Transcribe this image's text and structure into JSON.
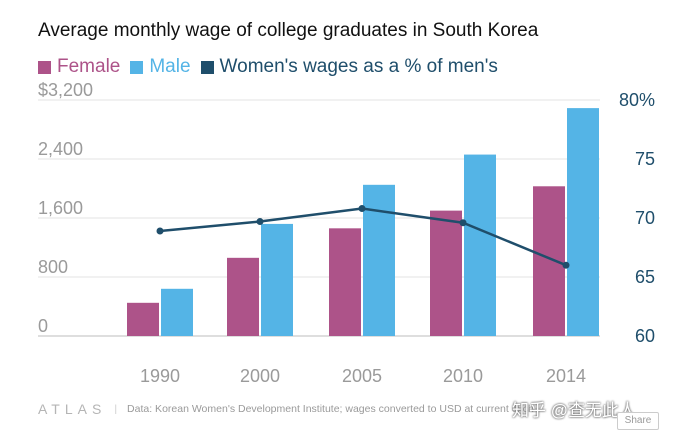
{
  "chart_data": {
    "type": "bar",
    "title": "Average monthly wage of college graduates in South Korea",
    "categories": [
      "1990",
      "2000",
      "2005",
      "2010",
      "2014"
    ],
    "series": [
      {
        "name": "Female",
        "type": "bar",
        "axis": "left",
        "color": "#ad5389",
        "values": [
          450,
          1060,
          1460,
          1700,
          2030
        ]
      },
      {
        "name": "Male",
        "type": "bar",
        "axis": "left",
        "color": "#54b4e6",
        "values": [
          640,
          1520,
          2050,
          2460,
          3090
        ]
      },
      {
        "name": "Women's wages as a % of men's",
        "type": "line",
        "axis": "right",
        "color": "#1f4e6b",
        "values": [
          68.9,
          69.7,
          70.8,
          69.6,
          66.0
        ]
      }
    ],
    "y_left": {
      "ylim": [
        0,
        3200
      ],
      "ticks": [
        "$3,200",
        "2,400",
        "1,600",
        "800",
        "0"
      ]
    },
    "y_right": {
      "ylim": [
        60,
        80
      ],
      "ticks": [
        "80%",
        "75",
        "70",
        "65",
        "60"
      ]
    },
    "grid": true,
    "legend_position": "top-left"
  },
  "source": {
    "brand": "ATLAS",
    "separator": "|",
    "text": "Data:  Korean Women's Development Institute; wages converted to USD at current exch"
  },
  "watermark": "知乎 @查无此人",
  "share_label": "Share"
}
